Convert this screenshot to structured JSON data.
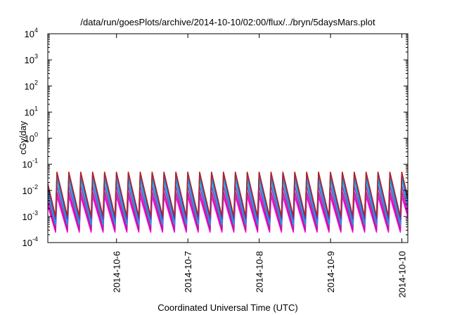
{
  "chart_data": {
    "type": "line",
    "title": "/data/run/goesPlots/archive/2014-10-10/02:00/flux/../bryn/5daysMars.plot",
    "xlabel": "Coordinated Universal Time (UTC)",
    "ylabel": "cGy/day",
    "x_scale": "time",
    "y_scale": "log",
    "xlim": [
      "2014-10-05T00:53",
      "2014-10-10T02:00"
    ],
    "ylim": [
      0.0001,
      10000
    ],
    "x_ticks": [
      "2014-10-6",
      "2014-10-7",
      "2014-10-8",
      "2014-10-9",
      "2014-10-10"
    ],
    "y_ticks": [
      {
        "base": "10",
        "exp": "-4"
      },
      {
        "base": "10",
        "exp": "-3"
      },
      {
        "base": "10",
        "exp": "-2"
      },
      {
        "base": "10",
        "exp": "-1"
      },
      {
        "base": "10",
        "exp": "0"
      },
      {
        "base": "10",
        "exp": "1"
      },
      {
        "base": "10",
        "exp": "2"
      },
      {
        "base": "10",
        "exp": "3"
      },
      {
        "base": "10",
        "exp": "4"
      }
    ],
    "grid": false,
    "legend": "none",
    "pattern": {
      "description_free": true,
      "period_hours": 4,
      "gap": {
        "start": "2014-10-07T08:30",
        "end": "2014-10-07T11:20",
        "level_at_end_of_gap": [
          0.001,
          0.0008,
          0.0005,
          0.0003,
          0.0002,
          0.0001,
          0.0001
        ]
      }
    },
    "series": [
      {
        "color": "#b22222",
        "peak": 0.05,
        "trough": 0.001
      },
      {
        "color": "#3b4fd8",
        "peak": 0.048,
        "trough": 0.0008
      },
      {
        "color": "#1e90ff",
        "peak": 0.035,
        "trough": 0.0006
      },
      {
        "color": "#20b2aa",
        "peak": 0.025,
        "trough": 0.0005
      },
      {
        "color": "#9932cc",
        "peak": 0.015,
        "trough": 0.0004
      },
      {
        "color": "#c71585",
        "peak": 0.009,
        "trough": 0.0003
      },
      {
        "color": "#ff00ff",
        "peak": 0.006,
        "trough": 0.00025
      }
    ]
  }
}
